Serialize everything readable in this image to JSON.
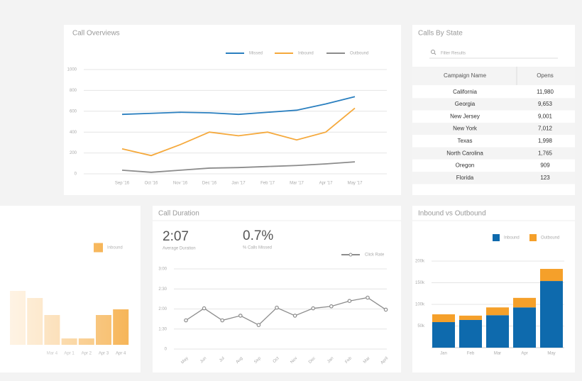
{
  "chart_data": [
    {
      "type": "line",
      "title": "Call Overviews",
      "categories": [
        "Sep '16",
        "Oct '16",
        "Nov '16",
        "Dec '16",
        "Jan '17",
        "Feb '17",
        "Mar '17",
        "Apr '17",
        "May '17"
      ],
      "series": [
        {
          "name": "Missed",
          "color": "#2a7fbf",
          "values": [
            570,
            580,
            590,
            585,
            570,
            590,
            610,
            670,
            740
          ]
        },
        {
          "name": "Inbound",
          "color": "#f5a93c",
          "values": [
            240,
            175,
            280,
            400,
            365,
            400,
            325,
            400,
            630
          ]
        },
        {
          "name": "Outbound",
          "color": "#8c8c8c",
          "values": [
            35,
            15,
            35,
            55,
            60,
            70,
            80,
            95,
            115
          ]
        }
      ],
      "ylim": [
        0,
        1000
      ],
      "yticks": [
        0,
        200,
        400,
        600,
        800,
        1000
      ],
      "grid": true
    },
    {
      "type": "bar",
      "categories": [
        null,
        null,
        "Mar 4",
        "Apr 1",
        "Apr 2",
        "Apr 3",
        "Apr 4"
      ],
      "series": [
        {
          "name": "Inbound",
          "color": "#f5a93c",
          "values": [
            76,
            66,
            42,
            9,
            9,
            42,
            50
          ]
        }
      ]
    },
    {
      "type": "line",
      "title": "Call Duration",
      "stats": [
        {
          "value": "2:07",
          "label": "Average Duration"
        },
        {
          "value": "0.7%",
          "label": "% Calls Missed"
        }
      ],
      "categories": [
        "May",
        "Jun",
        "Jul",
        "Aug",
        "Sep",
        "Oct",
        "Nov",
        "Dec",
        "Jan",
        "Feb",
        "Mar",
        "April"
      ],
      "series": [
        {
          "name": "Click Rate",
          "color": "#8c8c8c",
          "values": [
            103,
            121,
            103,
            110,
            96,
            122,
            110,
            121,
            124,
            132,
            137,
            119
          ]
        }
      ],
      "ylim": [
        0,
        180
      ],
      "yticks": [
        0,
        {
          "value": 90,
          "label": "1:30"
        },
        {
          "value": 120,
          "label": "2:00"
        },
        {
          "value": 150,
          "label": "2:30"
        },
        {
          "value": 180,
          "label": "3:00"
        }
      ],
      "grid": true
    },
    {
      "type": "stacked_bar",
      "title": "Inbound vs Outbound",
      "categories": [
        "Jan",
        "Feb",
        "Mar",
        "Apr",
        "May"
      ],
      "series": [
        {
          "name": "Inbound",
          "color": "#0e6aad",
          "values": [
            59000,
            64000,
            75000,
            93000,
            154000
          ]
        },
        {
          "name": "Outbound",
          "color": "#f5a02a",
          "values": [
            18000,
            10000,
            18000,
            22000,
            28000
          ]
        }
      ],
      "ylim": [
        0,
        200000
      ],
      "yticks": [
        {
          "value": 50000,
          "label": "50k"
        },
        {
          "value": 100000,
          "label": "100k"
        },
        {
          "value": 150000,
          "label": "150k"
        },
        {
          "value": 200000,
          "label": "200k"
        }
      ],
      "grid": true
    }
  ],
  "table": {
    "title": "Calls By State",
    "search_placeholder": "Filter Results",
    "columns": [
      "Campaign Name",
      "Opens"
    ],
    "rows": [
      [
        "California",
        "11,980"
      ],
      [
        "Georgia",
        "9,653"
      ],
      [
        "New Jersey",
        "9,001"
      ],
      [
        "New York",
        "7,012"
      ],
      [
        "Texas",
        "1,998"
      ],
      [
        "North Carolina",
        "1,765"
      ],
      [
        "Oregon",
        "909"
      ],
      [
        "Florida",
        "123"
      ]
    ]
  }
}
